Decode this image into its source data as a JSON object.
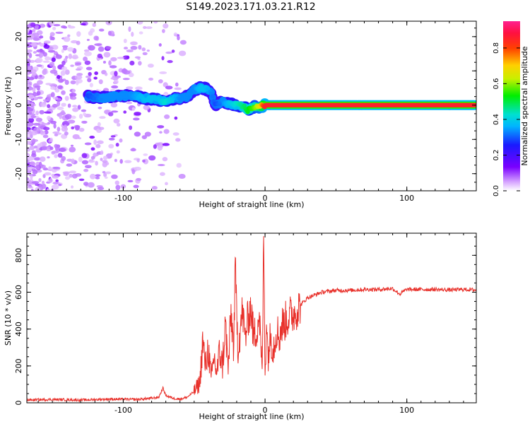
{
  "figure": {
    "title": "S149.2023.171.03.21.R12",
    "accent_color": "#e8302a"
  },
  "chart_data": [
    {
      "type": "heatmap",
      "title": "",
      "xlabel": "Height of straight line (km)",
      "ylabel": "Frequency (Hz)",
      "xlim": [
        -168,
        149
      ],
      "ylim": [
        -25,
        24.5
      ],
      "xticks": [
        -100,
        0,
        100
      ],
      "yticks": [
        20,
        10,
        0,
        -10,
        -20
      ],
      "colorbar": {
        "label": "Normalized spectral amplitude",
        "range": [
          0.0,
          0.95
        ],
        "ticks": [
          0.0,
          0.2,
          0.4,
          0.6,
          0.8
        ],
        "colormap": "rainbow (violet-blue-cyan-green-yellow-red-magenta)"
      },
      "ridge": {
        "description_of_values": "dominant frequency (Hz) vs height (km)",
        "x": [
          -125,
          -115,
          -105,
          -95,
          -85,
          -75,
          -70,
          -65,
          -60,
          -55,
          -50,
          -46,
          -42,
          -38,
          -35,
          -30,
          -25,
          -20,
          -15,
          -12,
          -8,
          -4,
          0,
          20,
          40,
          60,
          80,
          100,
          120,
          148
        ],
        "y": [
          2.5,
          2.2,
          2.6,
          2.8,
          2.0,
          1.5,
          1.0,
          1.8,
          2.0,
          2.6,
          4.5,
          5.0,
          4.8,
          3.5,
          0.0,
          1.0,
          0.5,
          0.0,
          -0.5,
          -1.5,
          -0.5,
          -0.5,
          0.0,
          0.0,
          0.0,
          0.0,
          0.0,
          0.0,
          0.0,
          0.0
        ],
        "amplitude": [
          0.3,
          0.35,
          0.35,
          0.35,
          0.4,
          0.4,
          0.45,
          0.4,
          0.35,
          0.35,
          0.35,
          0.4,
          0.4,
          0.35,
          0.3,
          0.35,
          0.4,
          0.45,
          0.5,
          0.55,
          0.6,
          0.7,
          0.9,
          0.9,
          0.9,
          0.9,
          0.9,
          0.9,
          0.9,
          0.9
        ]
      },
      "noise_region_x": [
        -168,
        -65
      ]
    },
    {
      "type": "line",
      "title": "",
      "xlabel": "Height of straight line (km)",
      "ylabel": "SNR (10 * v/v)",
      "xlim": [
        -168,
        149
      ],
      "ylim": [
        0,
        920
      ],
      "xticks": [
        -100,
        0,
        100
      ],
      "yticks": [
        0,
        200,
        400,
        600,
        800
      ],
      "series": [
        {
          "color": "#e8302a",
          "x": [
            -168,
            -150,
            -130,
            -110,
            -90,
            -80,
            -75,
            -72,
            -70,
            -65,
            -60,
            -55,
            -50,
            -46,
            -44,
            -42,
            -40,
            -38,
            -36,
            -34,
            -32,
            -30,
            -28,
            -26,
            -24,
            -22,
            -21,
            -20,
            -19,
            -18,
            -16,
            -14,
            -12,
            -10,
            -8,
            -6,
            -4,
            -2,
            -1,
            0,
            1,
            2,
            4,
            6,
            8,
            10,
            12,
            15,
            18,
            20,
            25,
            30,
            40,
            50,
            60,
            70,
            80,
            90,
            95,
            100,
            110,
            120,
            130,
            140,
            149
          ],
          "y": [
            15,
            18,
            15,
            20,
            18,
            25,
            30,
            80,
            40,
            25,
            20,
            30,
            60,
            110,
            330,
            200,
            300,
            120,
            250,
            160,
            280,
            200,
            430,
            180,
            480,
            300,
            740,
            500,
            300,
            360,
            500,
            350,
            460,
            520,
            350,
            400,
            480,
            150,
            915,
            150,
            470,
            260,
            360,
            300,
            400,
            360,
            420,
            450,
            480,
            480,
            530,
            570,
            600,
            610,
            610,
            615,
            615,
            620,
            590,
            615,
            615,
            615,
            612,
            615,
            612
          ]
        }
      ]
    }
  ]
}
